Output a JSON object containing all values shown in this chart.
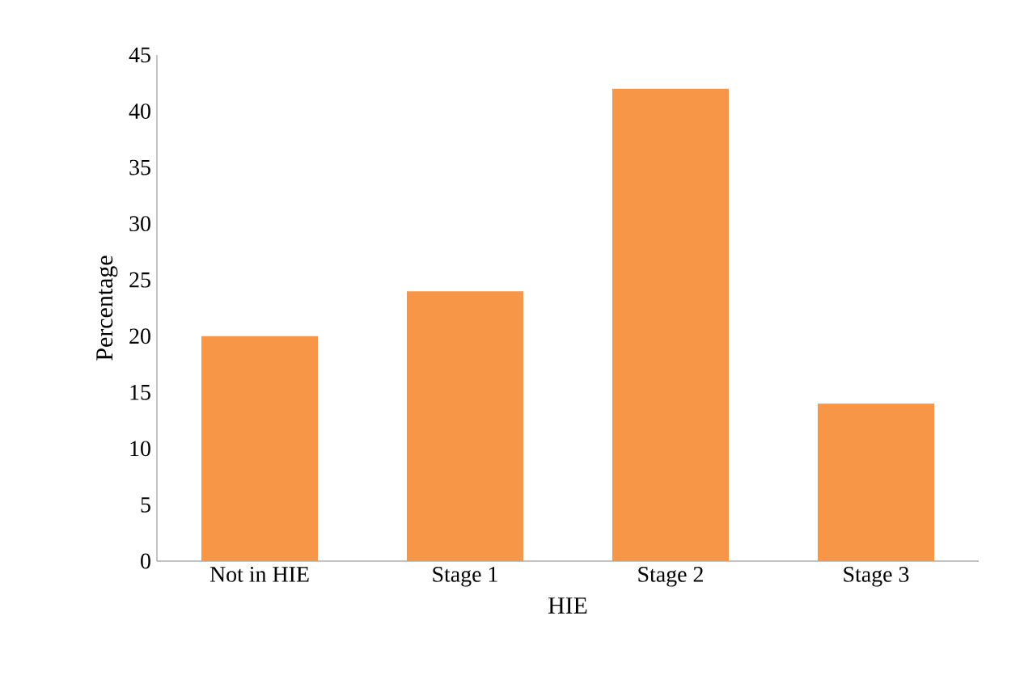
{
  "chart_data": {
    "type": "bar",
    "xlabel": "HIE",
    "ylabel": "Percentage",
    "categories": [
      "Not in HIE",
      "Stage 1",
      "Stage 2",
      "Stage 3"
    ],
    "values": [
      20,
      24,
      42,
      14
    ],
    "color": "#f79646",
    "ylim": [
      0,
      45
    ],
    "yticks": [
      0,
      5,
      10,
      15,
      20,
      25,
      30,
      35,
      40,
      45
    ],
    "grid": false
  }
}
